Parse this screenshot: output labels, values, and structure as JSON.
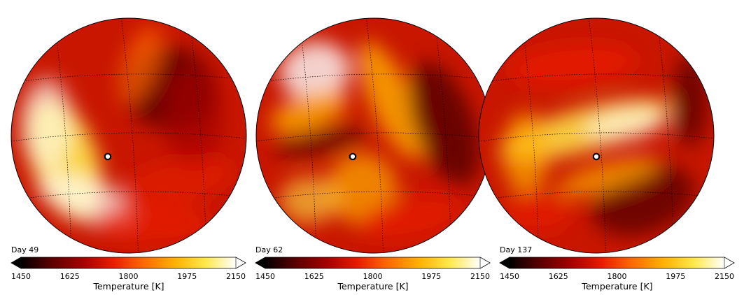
{
  "chart_data": [
    {
      "type": "heatmap",
      "title": "Day 49",
      "colorbar": {
        "label": "Temperature [K]",
        "vmin": 1450,
        "vmax": 2150,
        "ticks": [
          1450,
          1625,
          1800,
          1975,
          2150
        ],
        "extend": "both"
      },
      "substellar_marker": true
    },
    {
      "type": "heatmap",
      "title": "Day 62",
      "colorbar": {
        "label": "Temperature [K]",
        "vmin": 1450,
        "vmax": 2150,
        "ticks": [
          1450,
          1625,
          1800,
          1975,
          2150
        ],
        "extend": "both"
      },
      "substellar_marker": true
    },
    {
      "type": "heatmap",
      "title": "Day 137",
      "colorbar": {
        "label": "Temperature [K]",
        "vmin": 1450,
        "vmax": 2150,
        "ticks": [
          1450,
          1625,
          1800,
          1975,
          2150
        ],
        "extend": "both"
      },
      "substellar_marker": true
    }
  ],
  "colormap": [
    "#000000",
    "#5a0000",
    "#a30000",
    "#e81b00",
    "#ff6a00",
    "#ffb000",
    "#ffe84a",
    "#ffffff"
  ]
}
